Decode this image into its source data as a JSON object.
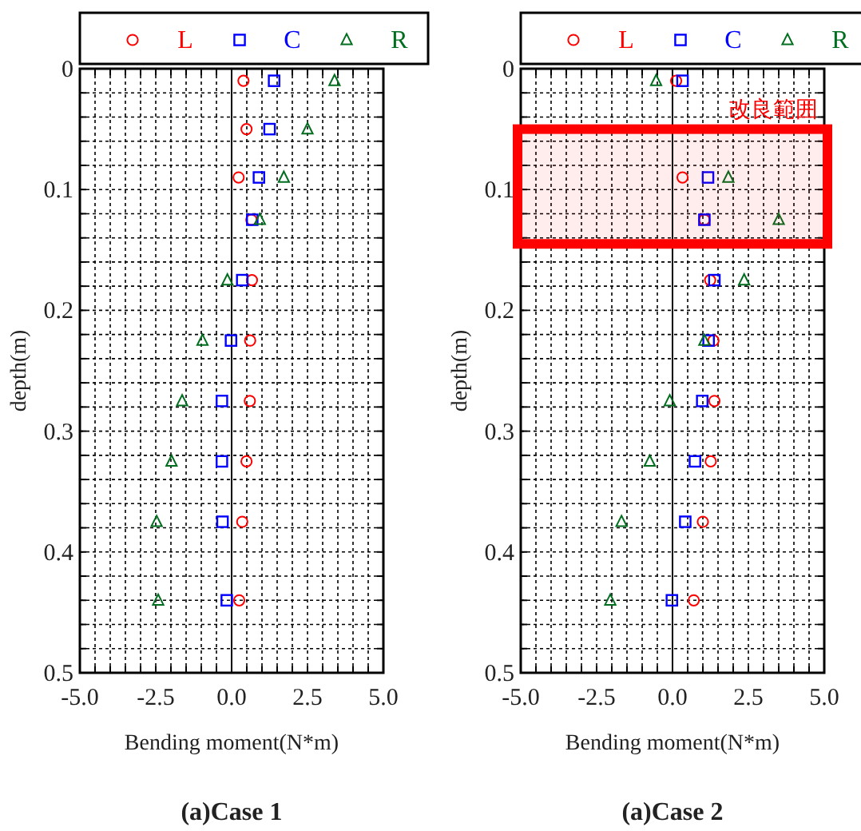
{
  "chart_data": [
    {
      "type": "scatter",
      "title": "(a)Case 1",
      "xlabel": "Bending moment(N*m)",
      "ylabel": "depth(m)",
      "legend": "top",
      "grid": true,
      "series": [
        {
          "name": "L",
          "color": "#ff0000",
          "marker": "circle",
          "x": [
            0.39,
            0.49,
            0.23,
            0.65,
            0.67,
            0.61,
            0.6,
            0.49,
            0.35,
            0.25
          ],
          "values": [
            0.01,
            0.05,
            0.09,
            0.125,
            0.175,
            0.225,
            0.275,
            0.325,
            0.375,
            0.44
          ]
        },
        {
          "name": "C",
          "color": "#0000ff",
          "marker": "square",
          "x": [
            1.4,
            1.25,
            0.9,
            0.68,
            0.35,
            -0.02,
            -0.32,
            -0.32,
            -0.3,
            -0.16
          ],
          "values": [
            0.01,
            0.05,
            0.09,
            0.125,
            0.175,
            0.225,
            0.275,
            0.325,
            0.375,
            0.44
          ]
        },
        {
          "name": "R",
          "color": "#006e1e",
          "marker": "triangle",
          "x": [
            3.39,
            2.5,
            1.72,
            0.93,
            -0.14,
            -0.96,
            -1.63,
            -1.98,
            -2.47,
            -2.42
          ],
          "values": [
            0.01,
            0.05,
            0.09,
            0.125,
            0.175,
            0.225,
            0.275,
            0.325,
            0.375,
            0.44
          ]
        }
      ],
      "xlim": [
        -5,
        5
      ],
      "xticks": [
        {
          "value": -5,
          "label": "-5.0"
        },
        {
          "value": -4.5,
          "label": null
        },
        {
          "value": -4,
          "label": null
        },
        {
          "value": -3.5,
          "label": null
        },
        {
          "value": -3,
          "label": null
        },
        {
          "value": -2.5,
          "label": "-2.5"
        },
        {
          "value": -2,
          "label": null
        },
        {
          "value": -1.5,
          "label": null
        },
        {
          "value": -1,
          "label": null
        },
        {
          "value": -0.5,
          "label": null
        },
        {
          "value": 0,
          "label": "0.0"
        },
        {
          "value": 0.5,
          "label": null
        },
        {
          "value": 1,
          "label": null
        },
        {
          "value": 1.5,
          "label": null
        },
        {
          "value": 2,
          "label": null
        },
        {
          "value": 2.5,
          "label": "2.5"
        },
        {
          "value": 3,
          "label": null
        },
        {
          "value": 3.5,
          "label": null
        },
        {
          "value": 4,
          "label": null
        },
        {
          "value": 4.5,
          "label": null
        },
        {
          "value": 5,
          "label": "5.0"
        }
      ],
      "ylim": [
        0.5,
        0
      ],
      "yticks": [
        0,
        {
          "value": 0.02,
          "label": null
        },
        {
          "value": 0.04,
          "label": null
        },
        {
          "value": 0.06,
          "label": null
        },
        {
          "value": 0.08,
          "label": null
        },
        0.1,
        {
          "value": 0.12,
          "label": null
        },
        {
          "value": 0.14,
          "label": null
        },
        {
          "value": 0.16,
          "label": null
        },
        {
          "value": 0.18,
          "label": null
        },
        0.2,
        {
          "value": 0.22,
          "label": null
        },
        {
          "value": 0.24,
          "label": null
        },
        {
          "value": 0.26,
          "label": null
        },
        {
          "value": 0.28,
          "label": null
        },
        0.3,
        {
          "value": 0.32,
          "label": null
        },
        {
          "value": 0.34,
          "label": null
        },
        {
          "value": 0.36,
          "label": null
        },
        {
          "value": 0.38,
          "label": null
        },
        0.4,
        {
          "value": 0.42,
          "label": null
        },
        {
          "value": 0.44,
          "label": null
        },
        {
          "value": 0.46,
          "label": null
        },
        {
          "value": 0.48,
          "label": null
        },
        0.5
      ],
      "ref_lines": [
        {
          "axis": "x",
          "value": 0,
          "color": "#000000"
        }
      ]
    },
    {
      "type": "scatter",
      "title": "(a)Case 2",
      "xlabel": "Bending moment(N*m)",
      "ylabel": "depth(m)",
      "legend": "top",
      "grid": true,
      "series": [
        {
          "name": "L",
          "color": "#ff0000",
          "marker": "circle",
          "x": [
            0.12,
            null,
            0.33,
            1.05,
            1.24,
            1.35,
            1.38,
            1.26,
            1.0,
            0.7
          ],
          "values": [
            0.01,
            null,
            0.09,
            0.125,
            0.175,
            0.225,
            0.275,
            0.325,
            0.375,
            0.44
          ]
        },
        {
          "name": "C",
          "color": "#0000ff",
          "marker": "square",
          "x": [
            0.33,
            null,
            1.17,
            1.05,
            1.38,
            1.19,
            0.98,
            0.74,
            0.42,
            -0.02
          ],
          "values": [
            0.01,
            null,
            0.09,
            0.125,
            0.175,
            0.225,
            0.275,
            0.325,
            0.375,
            0.44
          ]
        },
        {
          "name": "R",
          "color": "#006e1e",
          "marker": "triangle",
          "x": [
            -0.54,
            null,
            1.84,
            3.5,
            2.36,
            1.05,
            -0.09,
            -0.75,
            -1.68,
            -2.05
          ],
          "values": [
            0.01,
            null,
            0.09,
            0.125,
            0.175,
            0.225,
            0.275,
            0.325,
            0.375,
            0.44
          ]
        }
      ],
      "xlim": [
        -5,
        5
      ],
      "xticks": [
        {
          "value": -5,
          "label": "-5.0"
        },
        {
          "value": -4.5,
          "label": null
        },
        {
          "value": -4,
          "label": null
        },
        {
          "value": -3.5,
          "label": null
        },
        {
          "value": -3,
          "label": null
        },
        {
          "value": -2.5,
          "label": "-2.5"
        },
        {
          "value": -2,
          "label": null
        },
        {
          "value": -1.5,
          "label": null
        },
        {
          "value": -1,
          "label": null
        },
        {
          "value": -0.5,
          "label": null
        },
        {
          "value": 0,
          "label": "0.0"
        },
        {
          "value": 0.5,
          "label": null
        },
        {
          "value": 1,
          "label": null
        },
        {
          "value": 1.5,
          "label": null
        },
        {
          "value": 2,
          "label": null
        },
        {
          "value": 2.5,
          "label": "2.5"
        },
        {
          "value": 3,
          "label": null
        },
        {
          "value": 3.5,
          "label": null
        },
        {
          "value": 4,
          "label": null
        },
        {
          "value": 4.5,
          "label": null
        },
        {
          "value": 5,
          "label": "5.0"
        }
      ],
      "ylim": [
        0.5,
        0
      ],
      "yticks": [
        0,
        {
          "value": 0.02,
          "label": null
        },
        {
          "value": 0.04,
          "label": null
        },
        {
          "value": 0.06,
          "label": null
        },
        {
          "value": 0.08,
          "label": null
        },
        0.1,
        {
          "value": 0.12,
          "label": null
        },
        {
          "value": 0.14,
          "label": null
        },
        {
          "value": 0.16,
          "label": null
        },
        {
          "value": 0.18,
          "label": null
        },
        0.2,
        {
          "value": 0.22,
          "label": null
        },
        {
          "value": 0.24,
          "label": null
        },
        {
          "value": 0.26,
          "label": null
        },
        {
          "value": 0.28,
          "label": null
        },
        0.3,
        {
          "value": 0.32,
          "label": null
        },
        {
          "value": 0.34,
          "label": null
        },
        {
          "value": 0.36,
          "label": null
        },
        {
          "value": 0.38,
          "label": null
        },
        0.4,
        {
          "value": 0.42,
          "label": null
        },
        {
          "value": 0.44,
          "label": null
        },
        {
          "value": 0.46,
          "label": null
        },
        {
          "value": 0.48,
          "label": null
        },
        0.5
      ],
      "ref_lines": [
        {
          "axis": "x",
          "value": 0,
          "color": "#000000"
        }
      ],
      "bands": [
        {
          "axis": "y",
          "from": 0.05,
          "to": 0.145,
          "label": "改良範囲",
          "color": "#ff0000"
        }
      ]
    }
  ]
}
